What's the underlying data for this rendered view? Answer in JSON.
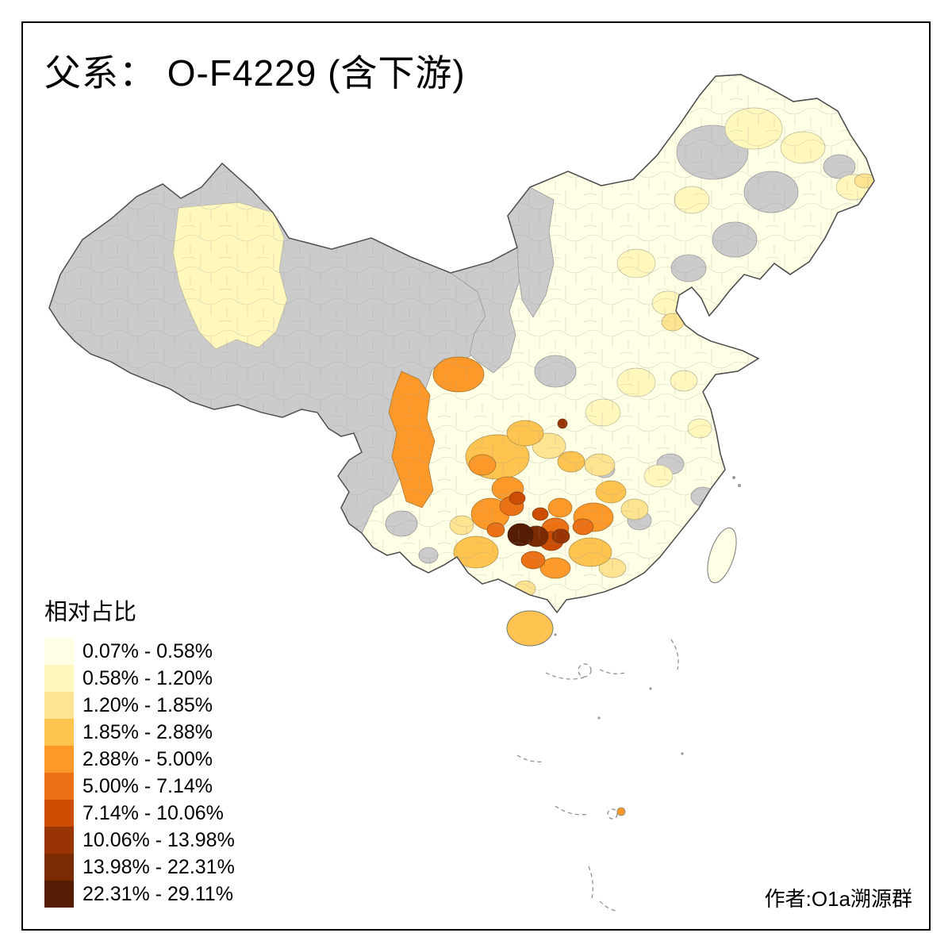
{
  "page": {
    "background": "#FFFFFF",
    "frame_color": "#000000"
  },
  "title": "父系： O-F4229 (含下游)",
  "author_credit": "作者:O1a溯源群",
  "legend": {
    "title": "相对占比",
    "classes": [
      {
        "label": "0.07% - 0.58%",
        "color": "#FFFFE5"
      },
      {
        "label": "0.58% - 1.20%",
        "color": "#FFF7BC"
      },
      {
        "label": "1.20% - 1.85%",
        "color": "#FEE391"
      },
      {
        "label": "1.85% - 2.88%",
        "color": "#FEC44F"
      },
      {
        "label": "2.88% - 5.00%",
        "color": "#FE9929"
      },
      {
        "label": "5.00% - 7.14%",
        "color": "#EC7014"
      },
      {
        "label": "7.14% - 10.06%",
        "color": "#CC4C02"
      },
      {
        "label": "10.06% - 13.98%",
        "color": "#993404"
      },
      {
        "label": "13.98% - 22.31%",
        "color": "#7A2B04"
      },
      {
        "label": "22.31% - 29.11%",
        "color": "#541C02"
      }
    ]
  },
  "map": {
    "no_data_color": "#CBCBCB",
    "land_outline_color": "#4D4D4D",
    "prefecture_line_color": "#9A9A9A",
    "sea_feature_color": "#888888"
  },
  "chart_data": {
    "type": "choropleth_map",
    "region_scope": "China, prefecture-level divisions",
    "title": "父系： O-F4229 (含下游)",
    "value_label": "相对占比",
    "class_breaks_percent": [
      0.07,
      0.58,
      1.2,
      1.85,
      2.88,
      5.0,
      7.14,
      10.06,
      13.98,
      22.31,
      29.11
    ],
    "palette": [
      "#FFFFE5",
      "#FFF7BC",
      "#FEE391",
      "#FEC44F",
      "#FE9929",
      "#EC7014",
      "#CC4C02",
      "#993404",
      "#7A2B04",
      "#541C02"
    ],
    "no_data_color": "#CBCBCB",
    "legend_position": "bottom-left"
  }
}
